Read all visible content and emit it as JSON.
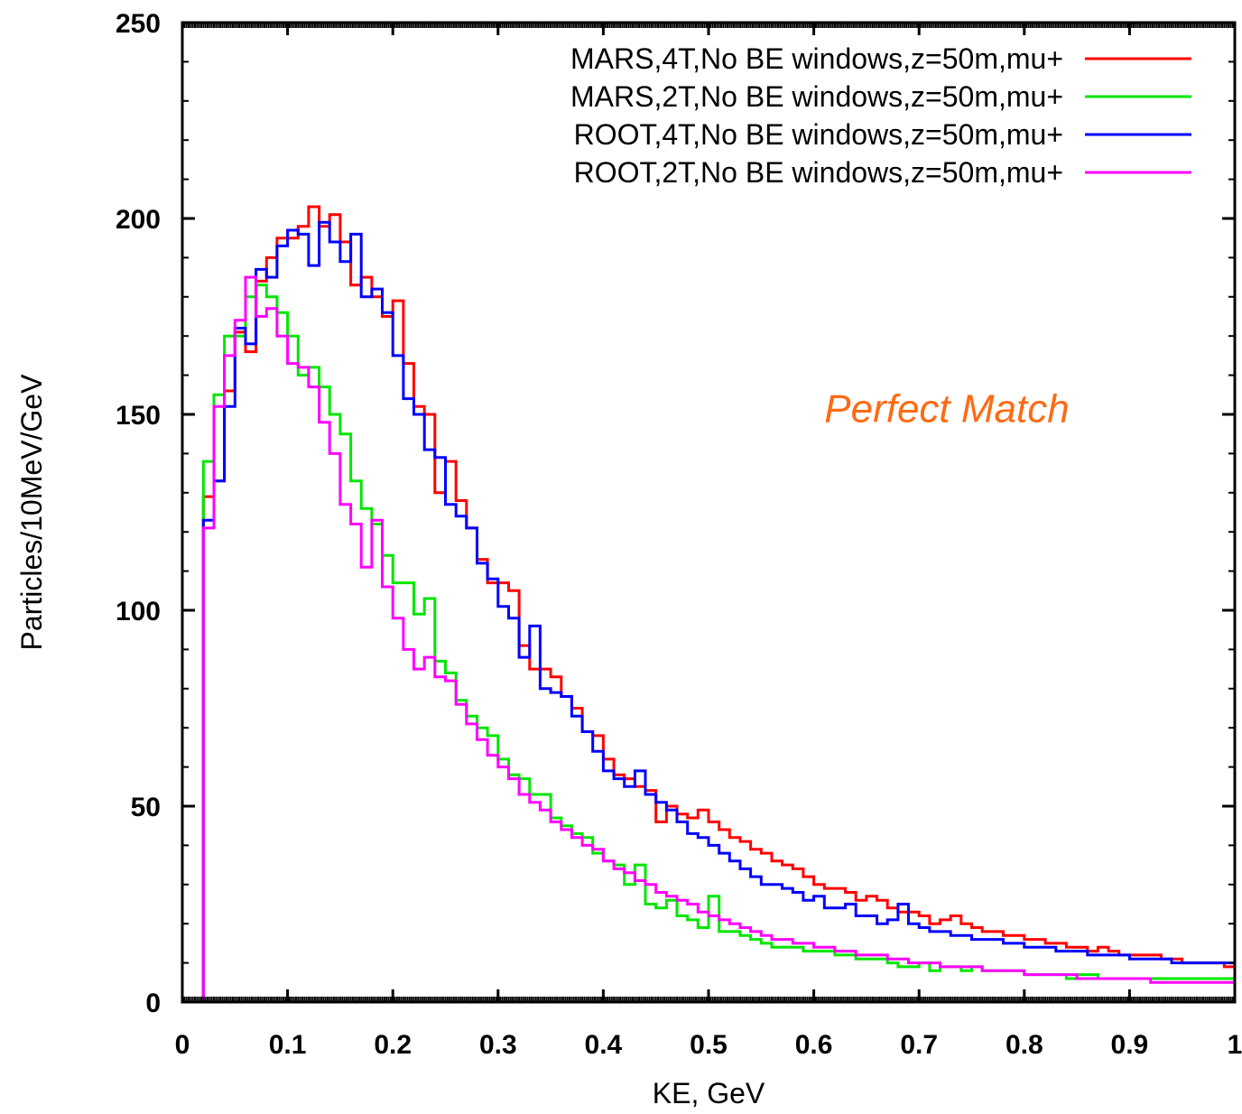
{
  "chart_data": {
    "type": "line",
    "step": true,
    "xlabel": "KE, GeV",
    "ylabel": "Particles/10MeV/GeV",
    "xlim": [
      0,
      1
    ],
    "ylim": [
      0,
      250
    ],
    "xticks": [
      0,
      0.1,
      0.2,
      0.3,
      0.4,
      0.5,
      0.6,
      0.7,
      0.8,
      0.9,
      1
    ],
    "xtick_labels": [
      "0",
      "0.1",
      "0.2",
      "0.3",
      "0.4",
      "0.5",
      "0.6",
      "0.7",
      "0.8",
      "0.9",
      "1"
    ],
    "yticks": [
      0,
      50,
      100,
      150,
      200,
      250
    ],
    "ytick_labels": [
      "0",
      "50",
      "100",
      "150",
      "200",
      "250"
    ],
    "grid": false,
    "legend_position": "top-right",
    "annotation": {
      "text": "Perfect Match",
      "x": 0.61,
      "y": 148,
      "color": "#ff6a13"
    },
    "bin_width": 0.01,
    "x_start": 0.02,
    "series": [
      {
        "name": "MARS,4T,No BE windows,z=50m,mu+",
        "color": "#ff0000",
        "values": [
          129,
          133,
          156,
          171,
          166,
          184,
          190,
          195,
          195,
          198,
          203,
          198,
          201,
          194,
          183,
          185,
          180,
          175,
          179,
          163,
          152,
          150,
          130,
          138,
          128,
          121,
          113,
          107,
          107,
          105,
          91,
          85,
          85,
          83,
          78,
          75,
          69,
          68,
          62,
          58,
          57,
          55,
          54,
          46,
          50,
          48,
          47,
          49,
          46,
          44,
          42,
          41,
          39,
          38,
          36,
          35,
          34,
          32,
          30,
          29,
          29,
          28,
          26,
          27,
          26,
          24,
          23,
          23,
          22,
          20,
          21,
          22,
          20,
          19,
          18,
          18,
          17,
          17,
          16,
          16,
          15,
          15,
          14,
          14,
          13,
          14,
          13,
          12,
          12,
          12,
          12,
          11,
          11,
          10,
          10,
          10,
          10,
          9
        ]
      },
      {
        "name": "MARS,2T,No BE windows,z=50m,mu+",
        "color": "#00e600",
        "values": [
          138,
          155,
          170,
          170,
          180,
          183,
          180,
          176,
          170,
          160,
          162,
          157,
          150,
          145,
          133,
          126,
          122,
          114,
          107,
          107,
          99,
          103,
          87,
          84,
          77,
          73,
          70,
          68,
          62,
          58,
          57,
          53,
          53,
          47,
          45,
          43,
          42,
          38,
          36,
          35,
          30,
          35,
          25,
          24,
          26,
          22,
          21,
          19,
          27,
          18,
          18,
          17,
          16,
          15,
          14,
          14,
          14,
          13,
          13,
          13,
          12,
          12,
          11,
          11,
          11,
          10,
          9,
          9,
          10,
          8,
          9,
          9,
          8,
          9,
          8,
          8,
          8,
          8,
          7,
          7,
          7,
          7,
          6,
          7,
          7,
          6,
          6,
          6,
          6,
          6,
          6,
          6,
          6,
          6,
          6,
          6,
          6,
          6
        ]
      },
      {
        "name": "ROOT,4T,No BE windows,z=50m,mu+",
        "color": "#0000ff",
        "values": [
          123,
          133,
          152,
          172,
          168,
          187,
          185,
          193,
          197,
          196,
          188,
          199,
          194,
          189,
          196,
          180,
          182,
          176,
          165,
          154,
          150,
          141,
          139,
          127,
          124,
          121,
          112,
          108,
          101,
          98,
          88,
          96,
          80,
          79,
          78,
          73,
          69,
          64,
          59,
          57,
          55,
          59,
          53,
          51,
          49,
          46,
          43,
          42,
          40,
          38,
          36,
          34,
          32,
          30,
          30,
          29,
          28,
          26,
          27,
          24,
          24,
          25,
          22,
          22,
          20,
          21,
          25,
          20,
          19,
          18,
          18,
          17,
          17,
          16,
          16,
          16,
          15,
          15,
          14,
          14,
          14,
          13,
          13,
          13,
          12,
          12,
          12,
          12,
          11,
          11,
          11,
          11,
          10,
          10,
          10,
          10,
          10,
          10
        ]
      },
      {
        "name": "ROOT,2T,No BE windows,z=50m,mu+",
        "color": "#ff00ff",
        "values": [
          121,
          152,
          165,
          174,
          185,
          175,
          177,
          170,
          163,
          162,
          157,
          148,
          140,
          127,
          122,
          111,
          123,
          106,
          98,
          90,
          85,
          88,
          83,
          82,
          76,
          71,
          67,
          63,
          60,
          57,
          53,
          51,
          49,
          46,
          44,
          42,
          40,
          39,
          36,
          34,
          33,
          31,
          30,
          28,
          27,
          26,
          25,
          23,
          22,
          21,
          20,
          19,
          18,
          17,
          16,
          16,
          15,
          15,
          14,
          14,
          13,
          13,
          12,
          12,
          12,
          11,
          11,
          10,
          10,
          10,
          9,
          9,
          9,
          9,
          8,
          8,
          8,
          8,
          7,
          7,
          7,
          7,
          7,
          6,
          6,
          6,
          6,
          6,
          6,
          6,
          5,
          5,
          5,
          5,
          5,
          5,
          5,
          5
        ]
      }
    ]
  }
}
